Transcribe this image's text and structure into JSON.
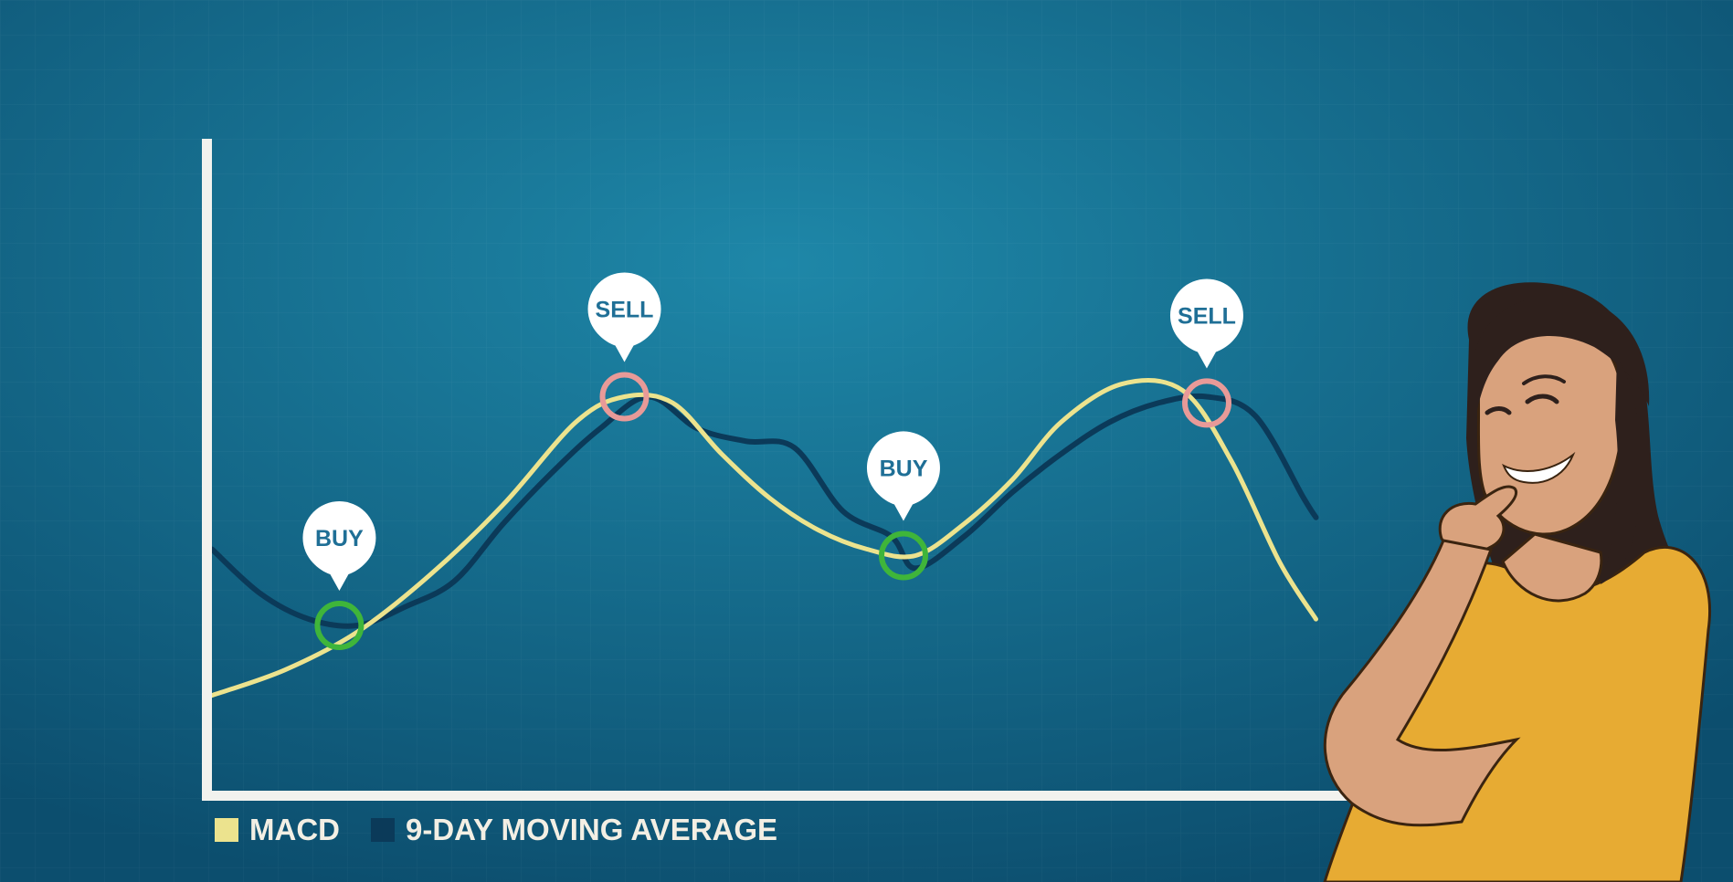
{
  "colors": {
    "background_center": "#1e87a8",
    "background_edge": "#0c4e6e",
    "axis": "#f2f2ee",
    "macd": "#ece38e",
    "moving_average": "#0b3a59",
    "buy_marker": "#3fb53a",
    "sell_marker": "#e89a98",
    "bubble_fill": "#ffffff",
    "bubble_text": "#1f6f96",
    "legend_text": "#f3efe4",
    "shirt": "#e7ab33",
    "skin": "#d9a27d",
    "hair": "#2e201c"
  },
  "chart_data": {
    "type": "line",
    "title": "",
    "xlabel": "",
    "ylabel": "",
    "xlim": [
      0,
      100
    ],
    "ylim": [
      0,
      100
    ],
    "grid": true,
    "legend_placement": "bottom-left",
    "series": [
      {
        "name": "MACD",
        "color": "#ece38e",
        "x": [
          0,
          6,
          12,
          18,
          24,
          30,
          34,
          38,
          42,
          46,
          50,
          54,
          58,
          62,
          66,
          70,
          75,
          80,
          84,
          88,
          91
        ],
        "y": [
          15,
          19,
          25,
          34,
          45,
          58,
          62,
          61,
          53,
          46,
          41,
          38,
          37,
          42,
          49,
          58,
          64,
          63,
          52,
          36,
          27
        ]
      },
      {
        "name": "9-DAY MOVING AVERAGE",
        "color": "#0b3a59",
        "x": [
          0,
          4,
          8,
          12,
          16,
          20,
          24,
          28,
          32,
          36,
          40,
          44,
          48,
          52,
          56,
          58,
          62,
          66,
          70,
          74,
          78,
          82,
          86,
          90,
          91
        ],
        "y": [
          38,
          31,
          27,
          26,
          29,
          33,
          42,
          50,
          57,
          62,
          57,
          55,
          54,
          44,
          40,
          35,
          40,
          47,
          53,
          58,
          61,
          62,
          59,
          46,
          43
        ]
      }
    ],
    "annotations": [
      {
        "label": "BUY",
        "kind": "buy",
        "x": 10.5,
        "y": 26
      },
      {
        "label": "SELL",
        "kind": "sell",
        "x": 34,
        "y": 62
      },
      {
        "label": "BUY",
        "kind": "buy",
        "x": 57,
        "y": 37
      },
      {
        "label": "SELL",
        "kind": "sell",
        "x": 82,
        "y": 61
      }
    ]
  },
  "legend": [
    {
      "label": "MACD",
      "color": "#ece38e"
    },
    {
      "label": "9-DAY MOVING AVERAGE",
      "color": "#0b3a59"
    }
  ]
}
